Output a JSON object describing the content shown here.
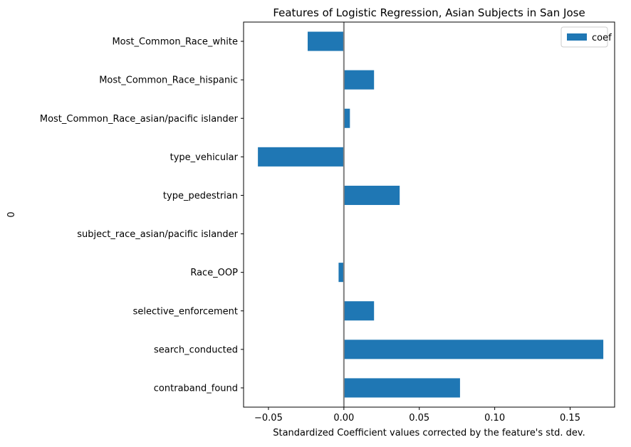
{
  "chart_data": {
    "type": "bar",
    "orientation": "horizontal",
    "title": "Features of Logistic Regression, Asian Subjects in San Jose",
    "xlabel": "Standardized Coefficient values corrected by the feature's std. dev.",
    "ylabel": "0",
    "xlim": [
      -0.0665,
      0.1795
    ],
    "xticks": [
      -0.05,
      0.0,
      0.05,
      0.1,
      0.15
    ],
    "xtick_labels": [
      "−0.05",
      "0.00",
      "0.05",
      "0.10",
      "0.15"
    ],
    "categories": [
      "Most_Common_Race_white",
      "Most_Common_Race_hispanic",
      "Most_Common_Race_asian/pacific islander",
      "type_vehicular",
      "type_pedestrian",
      "subject_race_asian/pacific islander",
      "Race_OOP",
      "selective_enforcement",
      "search_conducted",
      "contraband_found"
    ],
    "series": [
      {
        "name": "coef",
        "color": "#1f77b4",
        "values": [
          -0.024,
          0.02,
          0.004,
          -0.057,
          0.037,
          0.0,
          -0.0035,
          0.02,
          0.172,
          0.077
        ]
      }
    ],
    "zero_line": {
      "value": 0,
      "color": "#808080"
    },
    "legend": {
      "placement": "top-right",
      "entries": [
        "coef"
      ]
    },
    "grid": false
  }
}
